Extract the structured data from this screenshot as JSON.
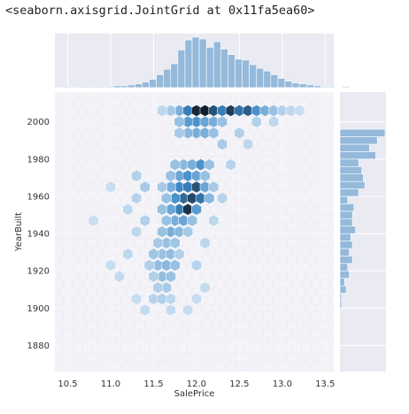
{
  "output_text": "<seaborn.axisgrid.JointGrid at 0x11fa5ea60>",
  "chart_data": {
    "type": "hexbin",
    "kind": "seaborn jointplot (hex) with marginal histograms",
    "xlabel": "SalePrice",
    "ylabel": "YearBuilt",
    "xlim": [
      10.35,
      13.6
    ],
    "ylim": [
      1866,
      2016
    ],
    "xticks": [
      "10.5",
      "11.0",
      "11.5",
      "12.0",
      "12.5",
      "13.0",
      "13.5"
    ],
    "yticks": [
      "1880",
      "1900",
      "1920",
      "1940",
      "1960",
      "1980",
      "2000"
    ],
    "grid": true,
    "colors": {
      "panel_bg": "#eaeaf2",
      "hist": "#94b9db",
      "hex_dark": "#131d2b",
      "hex_mid": "#3b89c7",
      "hex_light": "#d6e6f4"
    },
    "hex_bins": [
      {
        "x": 11.8,
        "y": 2006,
        "v": 0.3
      },
      {
        "x": 11.9,
        "y": 2006,
        "v": 0.55
      },
      {
        "x": 12.0,
        "y": 2006,
        "v": 0.95
      },
      {
        "x": 12.1,
        "y": 2006,
        "v": 1.0
      },
      {
        "x": 12.2,
        "y": 2006,
        "v": 0.75
      },
      {
        "x": 12.3,
        "y": 2006,
        "v": 0.55
      },
      {
        "x": 12.4,
        "y": 2006,
        "v": 0.85
      },
      {
        "x": 12.5,
        "y": 2006,
        "v": 0.6
      },
      {
        "x": 12.6,
        "y": 2006,
        "v": 0.7
      },
      {
        "x": 12.7,
        "y": 2006,
        "v": 0.45
      },
      {
        "x": 12.8,
        "y": 2006,
        "v": 0.3
      },
      {
        "x": 12.9,
        "y": 2006,
        "v": 0.2
      },
      {
        "x": 13.0,
        "y": 2006,
        "v": 0.12
      },
      {
        "x": 11.7,
        "y": 2006,
        "v": 0.15
      },
      {
        "x": 11.6,
        "y": 2006,
        "v": 0.08
      },
      {
        "x": 13.1,
        "y": 2006,
        "v": 0.08
      },
      {
        "x": 12.0,
        "y": 2000,
        "v": 0.45
      },
      {
        "x": 12.1,
        "y": 2000,
        "v": 0.35
      },
      {
        "x": 11.9,
        "y": 2000,
        "v": 0.4
      },
      {
        "x": 12.2,
        "y": 2000,
        "v": 0.3
      },
      {
        "x": 12.3,
        "y": 2000,
        "v": 0.2
      },
      {
        "x": 11.8,
        "y": 2000,
        "v": 0.2
      },
      {
        "x": 12.0,
        "y": 1994,
        "v": 0.3
      },
      {
        "x": 12.1,
        "y": 1994,
        "v": 0.3
      },
      {
        "x": 11.9,
        "y": 1994,
        "v": 0.25
      },
      {
        "x": 12.2,
        "y": 1994,
        "v": 0.2
      },
      {
        "x": 11.8,
        "y": 1994,
        "v": 0.15
      },
      {
        "x": 11.85,
        "y": 1977,
        "v": 0.25
      },
      {
        "x": 11.95,
        "y": 1977,
        "v": 0.3
      },
      {
        "x": 12.05,
        "y": 1977,
        "v": 0.45
      },
      {
        "x": 12.15,
        "y": 1977,
        "v": 0.2
      },
      {
        "x": 11.75,
        "y": 1977,
        "v": 0.2
      },
      {
        "x": 11.8,
        "y": 1971,
        "v": 0.35
      },
      {
        "x": 11.9,
        "y": 1971,
        "v": 0.45
      },
      {
        "x": 12.0,
        "y": 1971,
        "v": 0.35
      },
      {
        "x": 12.1,
        "y": 1971,
        "v": 0.2
      },
      {
        "x": 11.7,
        "y": 1971,
        "v": 0.2
      },
      {
        "x": 11.8,
        "y": 1965,
        "v": 0.5
      },
      {
        "x": 11.9,
        "y": 1965,
        "v": 0.55
      },
      {
        "x": 12.0,
        "y": 1965,
        "v": 0.75
      },
      {
        "x": 12.1,
        "y": 1965,
        "v": 0.35
      },
      {
        "x": 11.7,
        "y": 1965,
        "v": 0.3
      },
      {
        "x": 11.6,
        "y": 1965,
        "v": 0.15
      },
      {
        "x": 11.85,
        "y": 1959,
        "v": 0.65
      },
      {
        "x": 11.95,
        "y": 1959,
        "v": 0.8
      },
      {
        "x": 12.05,
        "y": 1959,
        "v": 0.6
      },
      {
        "x": 11.75,
        "y": 1959,
        "v": 0.45
      },
      {
        "x": 12.15,
        "y": 1959,
        "v": 0.25
      },
      {
        "x": 11.65,
        "y": 1959,
        "v": 0.2
      },
      {
        "x": 11.8,
        "y": 1953,
        "v": 0.55
      },
      {
        "x": 11.9,
        "y": 1953,
        "v": 0.9
      },
      {
        "x": 12.0,
        "y": 1953,
        "v": 0.4
      },
      {
        "x": 11.7,
        "y": 1953,
        "v": 0.35
      },
      {
        "x": 11.6,
        "y": 1953,
        "v": 0.2
      },
      {
        "x": 11.75,
        "y": 1947,
        "v": 0.3
      },
      {
        "x": 11.85,
        "y": 1947,
        "v": 0.35
      },
      {
        "x": 11.95,
        "y": 1947,
        "v": 0.2
      },
      {
        "x": 11.65,
        "y": 1947,
        "v": 0.2
      },
      {
        "x": 11.7,
        "y": 1941,
        "v": 0.3
      },
      {
        "x": 11.8,
        "y": 1941,
        "v": 0.25
      },
      {
        "x": 11.6,
        "y": 1941,
        "v": 0.2
      },
      {
        "x": 11.9,
        "y": 1941,
        "v": 0.15
      },
      {
        "x": 11.65,
        "y": 1935,
        "v": 0.2
      },
      {
        "x": 11.75,
        "y": 1935,
        "v": 0.18
      },
      {
        "x": 11.55,
        "y": 1935,
        "v": 0.15
      },
      {
        "x": 11.6,
        "y": 1929,
        "v": 0.2
      },
      {
        "x": 11.7,
        "y": 1929,
        "v": 0.22
      },
      {
        "x": 11.5,
        "y": 1929,
        "v": 0.18
      },
      {
        "x": 11.8,
        "y": 1929,
        "v": 0.12
      },
      {
        "x": 11.55,
        "y": 1923,
        "v": 0.22
      },
      {
        "x": 11.65,
        "y": 1923,
        "v": 0.25
      },
      {
        "x": 11.75,
        "y": 1923,
        "v": 0.2
      },
      {
        "x": 11.45,
        "y": 1923,
        "v": 0.12
      },
      {
        "x": 11.6,
        "y": 1917,
        "v": 0.22
      },
      {
        "x": 11.7,
        "y": 1917,
        "v": 0.2
      },
      {
        "x": 11.5,
        "y": 1917,
        "v": 0.12
      },
      {
        "x": 11.65,
        "y": 1911,
        "v": 0.15
      },
      {
        "x": 11.55,
        "y": 1911,
        "v": 0.12
      },
      {
        "x": 11.5,
        "y": 1905,
        "v": 0.1
      },
      {
        "x": 11.6,
        "y": 1905,
        "v": 0.12
      },
      {
        "x": 11.7,
        "y": 1905,
        "v": 0.08
      },
      {
        "x": 11.4,
        "y": 1899,
        "v": 0.06
      },
      {
        "x": 11.7,
        "y": 1899,
        "v": 0.06
      },
      {
        "x": 11.3,
        "y": 1971,
        "v": 0.12
      },
      {
        "x": 11.4,
        "y": 1965,
        "v": 0.15
      },
      {
        "x": 11.3,
        "y": 1959,
        "v": 0.1
      },
      {
        "x": 11.2,
        "y": 1953,
        "v": 0.08
      },
      {
        "x": 11.4,
        "y": 1947,
        "v": 0.12
      },
      {
        "x": 11.3,
        "y": 1941,
        "v": 0.08
      },
      {
        "x": 11.2,
        "y": 1929,
        "v": 0.08
      },
      {
        "x": 11.1,
        "y": 1917,
        "v": 0.06
      },
      {
        "x": 11.0,
        "y": 1923,
        "v": 0.05
      },
      {
        "x": 12.3,
        "y": 1988,
        "v": 0.15
      },
      {
        "x": 12.5,
        "y": 1994,
        "v": 0.12
      },
      {
        "x": 12.4,
        "y": 1977,
        "v": 0.1
      },
      {
        "x": 12.2,
        "y": 1965,
        "v": 0.15
      },
      {
        "x": 12.3,
        "y": 1959,
        "v": 0.1
      },
      {
        "x": 12.2,
        "y": 1947,
        "v": 0.08
      },
      {
        "x": 12.1,
        "y": 1935,
        "v": 0.08
      },
      {
        "x": 12.0,
        "y": 1923,
        "v": 0.1
      },
      {
        "x": 12.1,
        "y": 1911,
        "v": 0.06
      },
      {
        "x": 12.7,
        "y": 2000,
        "v": 0.12
      },
      {
        "x": 12.9,
        "y": 2000,
        "v": 0.08
      },
      {
        "x": 12.6,
        "y": 1988,
        "v": 0.08
      },
      {
        "x": 13.2,
        "y": 2006,
        "v": 0.05
      },
      {
        "x": 11.0,
        "y": 1965,
        "v": 0.05
      },
      {
        "x": 10.8,
        "y": 1947,
        "v": 0.04
      },
      {
        "x": 11.9,
        "y": 1899,
        "v": 0.05
      },
      {
        "x": 11.3,
        "y": 1905,
        "v": 0.05
      },
      {
        "x": 12.0,
        "y": 1905,
        "v": 0.05
      }
    ],
    "marginal_x": {
      "bin_edges_start": 10.45,
      "bin_width": 0.0833,
      "counts": [
        1,
        0,
        1,
        0,
        1,
        1,
        1,
        2,
        2,
        3,
        4,
        6,
        9,
        14,
        20,
        26,
        41,
        52,
        55,
        53,
        44,
        50,
        42,
        36,
        31,
        30,
        25,
        21,
        18,
        14,
        10,
        7,
        5,
        4,
        3,
        2,
        1,
        1,
        0,
        1
      ]
    },
    "marginal_y": {
      "bin_edges_start": 1872,
      "bin_width": 4,
      "counts": [
        0,
        0,
        0,
        0,
        0,
        0,
        0,
        1,
        1,
        4,
        3,
        6,
        5,
        8,
        6,
        8,
        7,
        10,
        8,
        8,
        9,
        5,
        12,
        16,
        15,
        14,
        12,
        23,
        19,
        24,
        29
      ]
    }
  }
}
